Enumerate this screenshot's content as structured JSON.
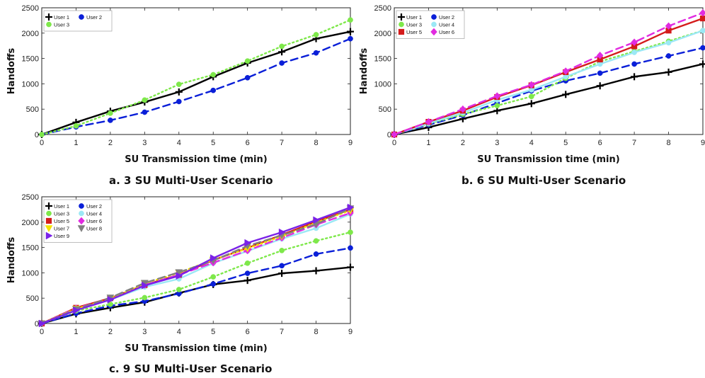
{
  "captions": [
    "a. 3 SU Multi-User Scenario",
    "b. 6 SU Multi-User Scenario",
    "c. 9 SU Multi-User Scenario"
  ],
  "chart_data": [
    {
      "type": "line",
      "title": "",
      "xlabel": "SU Transmission time (min)",
      "ylabel": "Handoffs",
      "xlim": [
        0,
        9
      ],
      "ylim": [
        0,
        2500
      ],
      "xticks": [
        0,
        1,
        2,
        3,
        4,
        5,
        6,
        7,
        8,
        9
      ],
      "yticks": [
        0,
        500,
        1000,
        1500,
        2000,
        2500
      ],
      "x": [
        0,
        1,
        2,
        3,
        4,
        5,
        6,
        7,
        8,
        9
      ],
      "legend_columns": 2,
      "legend_position": "top-left",
      "series": [
        {
          "name": "User 1",
          "color": "#000000",
          "dash": "solid",
          "marker": "plus",
          "values": [
            0,
            240,
            460,
            640,
            840,
            1140,
            1410,
            1630,
            1890,
            2030
          ]
        },
        {
          "name": "User 2",
          "color": "#0a1fd8",
          "dash": "dashed",
          "marker": "circle",
          "values": [
            0,
            150,
            280,
            440,
            650,
            870,
            1120,
            1410,
            1610,
            1890
          ]
        },
        {
          "name": "User 3",
          "color": "#7ee84a",
          "dash": "dotted",
          "marker": "circle",
          "values": [
            0,
            170,
            420,
            680,
            990,
            1180,
            1450,
            1740,
            1970,
            2260
          ]
        }
      ]
    },
    {
      "type": "line",
      "title": "",
      "xlabel": "SU Transmission time (min)",
      "ylabel": "Handoffs",
      "xlim": [
        0,
        9
      ],
      "ylim": [
        0,
        2500
      ],
      "xticks": [
        0,
        1,
        2,
        3,
        4,
        5,
        6,
        7,
        8,
        9
      ],
      "yticks": [
        0,
        500,
        1000,
        1500,
        2000,
        2500
      ],
      "x": [
        0,
        1,
        2,
        3,
        4,
        5,
        6,
        7,
        8,
        9
      ],
      "legend_columns": 2,
      "legend_position": "top-left",
      "series": [
        {
          "name": "User 1",
          "color": "#000000",
          "dash": "solid",
          "marker": "plus",
          "values": [
            0,
            140,
            310,
            470,
            610,
            790,
            960,
            1140,
            1230,
            1390
          ]
        },
        {
          "name": "User 2",
          "color": "#0a1fd8",
          "dash": "dashed",
          "marker": "circle",
          "values": [
            0,
            190,
            380,
            620,
            860,
            1060,
            1210,
            1390,
            1550,
            1710
          ]
        },
        {
          "name": "User 3",
          "color": "#7ee84a",
          "dash": "dotted",
          "marker": "circle",
          "values": [
            0,
            210,
            400,
            570,
            750,
            1110,
            1440,
            1640,
            1840,
            2050
          ]
        },
        {
          "name": "User 4",
          "color": "#9be8f5",
          "dash": "solid",
          "marker": "circle",
          "values": [
            0,
            220,
            430,
            680,
            880,
            1140,
            1390,
            1620,
            1810,
            2050
          ]
        },
        {
          "name": "User 5",
          "color": "#d41b1b",
          "dash": "solid",
          "marker": "square",
          "values": [
            0,
            250,
            470,
            740,
            970,
            1230,
            1480,
            1740,
            2050,
            2290
          ]
        },
        {
          "name": "User 6",
          "color": "#e12be0",
          "dash": "dashed",
          "marker": "diamond",
          "values": [
            0,
            250,
            500,
            760,
            980,
            1250,
            1560,
            1820,
            2140,
            2400
          ]
        }
      ]
    },
    {
      "type": "line",
      "title": "",
      "xlabel": "SU Transmission time (min)",
      "ylabel": "Handoffs",
      "xlim": [
        0,
        9
      ],
      "ylim": [
        0,
        2500
      ],
      "xticks": [
        0,
        1,
        2,
        3,
        4,
        5,
        6,
        7,
        8,
        9
      ],
      "yticks": [
        0,
        500,
        1000,
        1500,
        2000,
        2500
      ],
      "x": [
        0,
        1,
        2,
        3,
        4,
        5,
        6,
        7,
        8,
        9
      ],
      "legend_columns": 2,
      "legend_position": "top-left",
      "series": [
        {
          "name": "User 1",
          "color": "#000000",
          "dash": "solid",
          "marker": "plus",
          "values": [
            0,
            190,
            310,
            420,
            600,
            770,
            850,
            990,
            1040,
            1110
          ]
        },
        {
          "name": "User 2",
          "color": "#0a1fd8",
          "dash": "dashed",
          "marker": "circle",
          "values": [
            0,
            200,
            350,
            440,
            590,
            780,
            990,
            1140,
            1370,
            1490
          ]
        },
        {
          "name": "User 3",
          "color": "#7ee84a",
          "dash": "dotted",
          "marker": "circle",
          "values": [
            0,
            250,
            380,
            510,
            670,
            920,
            1190,
            1440,
            1630,
            1800
          ]
        },
        {
          "name": "User 4",
          "color": "#9be8f5",
          "dash": "solid",
          "marker": "circle",
          "values": [
            0,
            270,
            470,
            720,
            880,
            1190,
            1430,
            1670,
            1880,
            2160
          ]
        },
        {
          "name": "User 5",
          "color": "#d41b1b",
          "dash": "solid",
          "marker": "square",
          "values": [
            0,
            310,
            500,
            760,
            960,
            1250,
            1490,
            1750,
            2010,
            2250
          ]
        },
        {
          "name": "User 6",
          "color": "#e12be0",
          "dash": "dashed",
          "marker": "diamond",
          "values": [
            0,
            300,
            490,
            760,
            960,
            1200,
            1440,
            1690,
            1950,
            2180
          ]
        },
        {
          "name": "User 7",
          "color": "#f4e300",
          "dash": "dotted",
          "marker": "triangle-down",
          "values": [
            0,
            290,
            480,
            790,
            1000,
            1260,
            1480,
            1720,
            1990,
            2230
          ]
        },
        {
          "name": "User 8",
          "color": "#7f7f7f",
          "dash": "dashed",
          "marker": "triangle-down",
          "values": [
            0,
            280,
            510,
            800,
            1010,
            1240,
            1530,
            1740,
            1960,
            2270
          ]
        },
        {
          "name": "User 9",
          "color": "#7a22e8",
          "dash": "solid",
          "marker": "triangle-right",
          "values": [
            0,
            260,
            470,
            750,
            940,
            1290,
            1590,
            1800,
            2040,
            2290
          ]
        }
      ]
    }
  ]
}
